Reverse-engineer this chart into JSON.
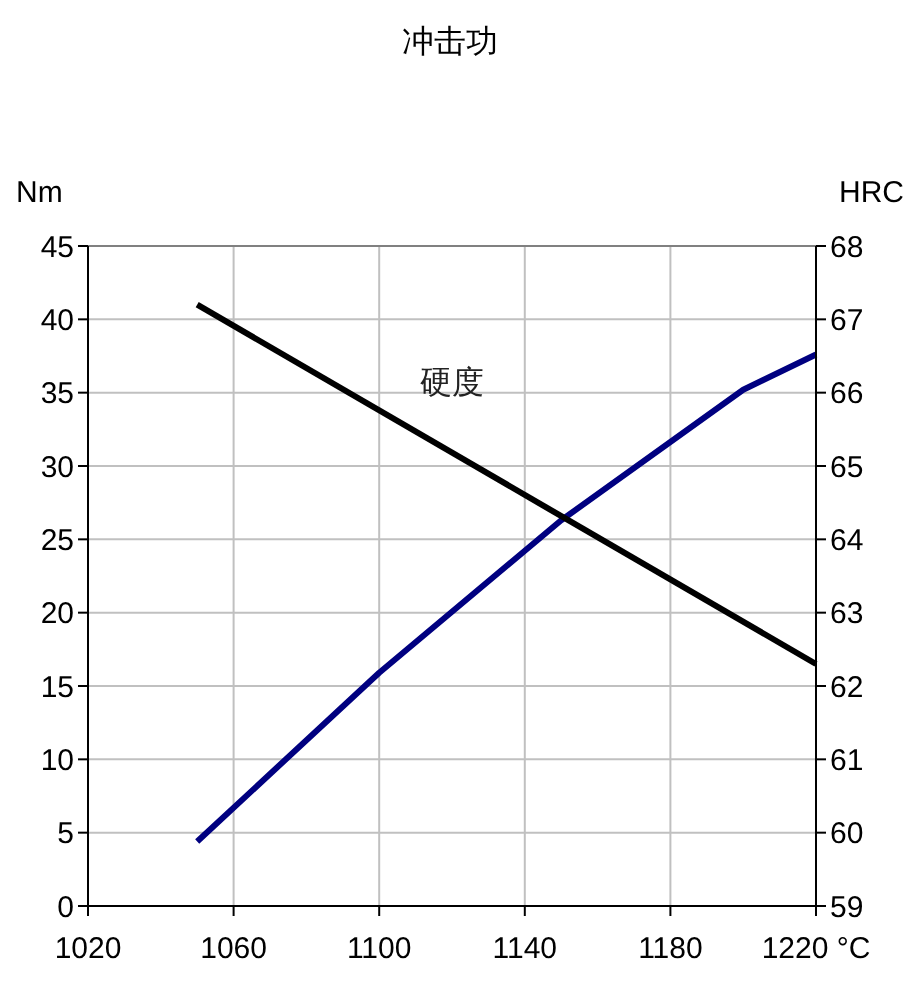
{
  "chart_data": {
    "type": "line",
    "title": "冲击功",
    "ylabel": "Nm",
    "y2label": "HRC",
    "xlim": [
      1020,
      1220
    ],
    "xticks": [
      1020,
      1060,
      1100,
      1140,
      1180,
      {
        "value": 1220,
        "label": "1220 °C"
      }
    ],
    "ylim": [
      0,
      45
    ],
    "yticks": [
      0,
      5,
      10,
      15,
      20,
      25,
      30,
      35,
      40,
      45
    ],
    "y2lim": [
      59,
      68
    ],
    "y2ticks": [
      59,
      60,
      61,
      62,
      63,
      64,
      65,
      66,
      67,
      68
    ],
    "grid": true,
    "marker": "none",
    "line_style": "solid",
    "series": [
      {
        "color": "#000080",
        "x": [
          1050,
          1100,
          1150,
          1200,
          1220
        ],
        "values": [
          4.4,
          15.9,
          26.3,
          35.2,
          37.6
        ]
      },
      {
        "name": "硬度",
        "color": "#000000",
        "axis": "y2",
        "x": [
          1050,
          1220
        ],
        "values": [
          67.2,
          62.3
        ]
      }
    ]
  }
}
